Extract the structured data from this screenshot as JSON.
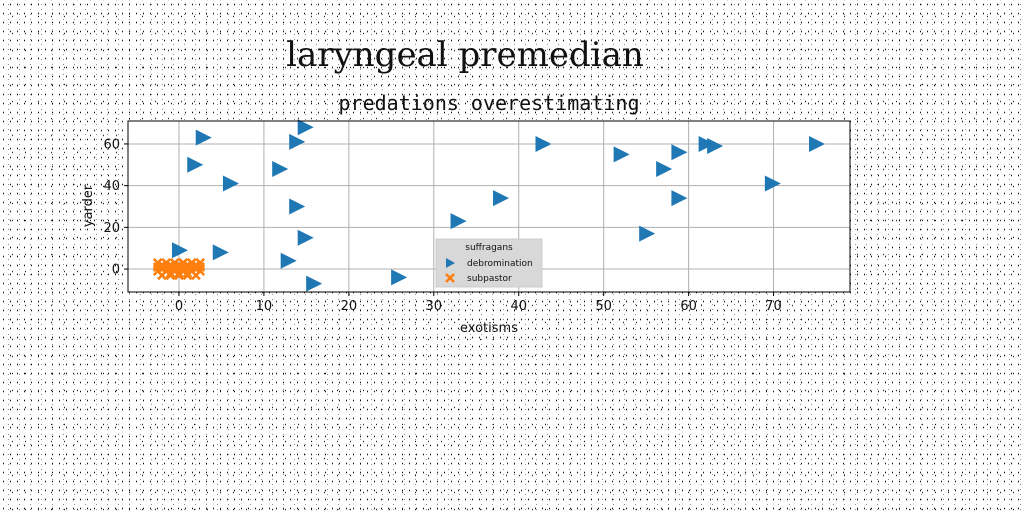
{
  "chart_data": {
    "type": "scatter",
    "suptitle": "laryngeal premedian",
    "title": "predations overestimating",
    "xlabel": "exotisms",
    "ylabel": "yarder",
    "xlim": [
      -6,
      79
    ],
    "ylim": [
      -11,
      71
    ],
    "xticks": [
      0,
      10,
      20,
      30,
      40,
      50,
      60,
      70
    ],
    "yticks": [
      0,
      20,
      40,
      60
    ],
    "grid": true,
    "legend": {
      "title": "suffragans",
      "placement": "lower-center"
    },
    "series": [
      {
        "name": "debromination",
        "marker": "triangle-right",
        "color": "#1f77b4",
        "points": [
          [
            2.8,
            63
          ],
          [
            14.8,
            68
          ],
          [
            13.8,
            61
          ],
          [
            42.8,
            60
          ],
          [
            52.0,
            55
          ],
          [
            58.8,
            56
          ],
          [
            62.0,
            60
          ],
          [
            63.0,
            59
          ],
          [
            75.0,
            60
          ],
          [
            1.8,
            50
          ],
          [
            11.8,
            48
          ],
          [
            57.0,
            48
          ],
          [
            6.0,
            41
          ],
          [
            69.8,
            41
          ],
          [
            37.8,
            34
          ],
          [
            58.8,
            34
          ],
          [
            13.8,
            30
          ],
          [
            32.8,
            23
          ],
          [
            55.0,
            17
          ],
          [
            14.8,
            15
          ],
          [
            0.0,
            9
          ],
          [
            4.8,
            8
          ],
          [
            12.8,
            4
          ],
          [
            25.8,
            -4
          ],
          [
            15.8,
            -7
          ]
        ]
      },
      {
        "name": "subpastor",
        "marker": "x",
        "color": "#ff7f0e",
        "points": [
          [
            -2.5,
            3
          ],
          [
            -1.5,
            3
          ],
          [
            -0.5,
            3
          ],
          [
            0.5,
            3
          ],
          [
            1.5,
            3
          ],
          [
            2.5,
            3
          ],
          [
            -2.5,
            1
          ],
          [
            -1.5,
            1
          ],
          [
            -0.5,
            1
          ],
          [
            0.5,
            1
          ],
          [
            1.5,
            1
          ],
          [
            2.5,
            1
          ],
          [
            -2.5,
            -1
          ],
          [
            -1.5,
            -1
          ],
          [
            -0.5,
            -1
          ],
          [
            0.5,
            -1
          ],
          [
            1.5,
            -1
          ],
          [
            2.5,
            -1
          ],
          [
            -2.0,
            -3
          ],
          [
            -1.0,
            -3
          ],
          [
            0.0,
            -3
          ],
          [
            1.0,
            -3
          ],
          [
            2.0,
            -3
          ],
          [
            -2.0,
            2
          ],
          [
            -1.0,
            2
          ],
          [
            0.0,
            2
          ],
          [
            1.0,
            2
          ],
          [
            2.0,
            2
          ],
          [
            -2.0,
            0
          ],
          [
            -1.0,
            0
          ],
          [
            0.0,
            0
          ],
          [
            1.0,
            0
          ],
          [
            2.0,
            0
          ],
          [
            -1.0,
            -2
          ],
          [
            0.0,
            -2
          ],
          [
            1.0,
            -2
          ]
        ]
      }
    ]
  }
}
